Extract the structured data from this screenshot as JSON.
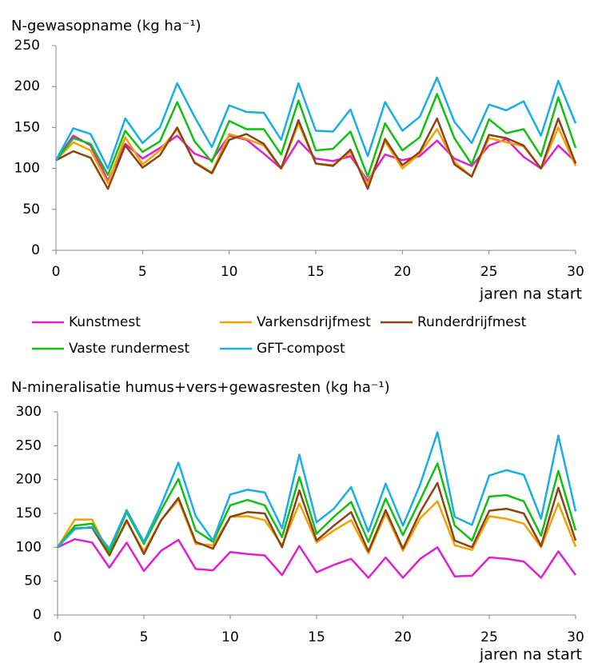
{
  "chart_data": [
    {
      "type": "line",
      "title": "N-gewasopname (kg ha⁻¹)",
      "x_label": "jaren na start",
      "x": [
        0,
        1,
        2,
        3,
        4,
        5,
        6,
        7,
        8,
        9,
        10,
        11,
        12,
        13,
        14,
        15,
        16,
        17,
        18,
        19,
        20,
        21,
        22,
        23,
        24,
        25,
        26,
        27,
        28,
        29,
        30
      ],
      "xlim": [
        0,
        30
      ],
      "xticks": [
        0,
        5,
        10,
        15,
        20,
        25,
        30
      ],
      "ylim": [
        0,
        250
      ],
      "yticks": [
        0,
        50,
        100,
        150,
        200,
        250
      ],
      "legend": "bottom",
      "series": [
        {
          "name": "Kunstmest",
          "color": "#e020d0",
          "values": [
            110,
            140,
            128,
            85,
            130,
            112,
            125,
            140,
            118,
            110,
            140,
            135,
            118,
            100,
            134,
            112,
            109,
            115,
            85,
            117,
            110,
            115,
            134,
            112,
            103,
            128,
            136,
            114,
            100,
            128,
            108
          ]
        },
        {
          "name": "Varkensdrijfmest",
          "color": "#f5a000",
          "values": [
            110,
            132,
            122,
            82,
            138,
            105,
            122,
            148,
            108,
            95,
            142,
            136,
            128,
            100,
            155,
            106,
            104,
            120,
            80,
            133,
            100,
            118,
            148,
            108,
            90,
            137,
            132,
            127,
            100,
            150,
            103
          ]
        },
        {
          "name": "Runderdrijfmest",
          "color": "#8b4513",
          "values": [
            110,
            121,
            113,
            75,
            128,
            101,
            116,
            150,
            107,
            94,
            135,
            142,
            130,
            100,
            159,
            106,
            103,
            123,
            75,
            136,
            104,
            120,
            161,
            105,
            90,
            141,
            137,
            128,
            100,
            161,
            106
          ]
        },
        {
          "name": "Vaste rundermest",
          "color": "#11c011",
          "values": [
            110,
            137,
            130,
            92,
            146,
            120,
            133,
            181,
            133,
            108,
            158,
            148,
            148,
            117,
            183,
            122,
            124,
            145,
            90,
            155,
            122,
            138,
            191,
            137,
            105,
            160,
            143,
            148,
            115,
            187,
            125
          ]
        },
        {
          "name": "GFT-compost",
          "color": "#19aee8",
          "values": [
            110,
            149,
            142,
            100,
            161,
            131,
            150,
            204,
            163,
            126,
            177,
            169,
            168,
            135,
            204,
            146,
            145,
            172,
            115,
            181,
            146,
            163,
            211,
            157,
            131,
            178,
            171,
            182,
            140,
            207,
            155
          ]
        }
      ]
    },
    {
      "type": "line",
      "title": "N-mineralisatie humus+vers+gewasresten (kg ha⁻¹)",
      "x_label": "jaren na start",
      "x": [
        0,
        1,
        2,
        3,
        4,
        5,
        6,
        7,
        8,
        9,
        10,
        11,
        12,
        13,
        14,
        15,
        16,
        17,
        18,
        19,
        20,
        21,
        22,
        23,
        24,
        25,
        26,
        27,
        28,
        29,
        30
      ],
      "xlim": [
        0,
        30
      ],
      "xticks": [
        0,
        5,
        10,
        15,
        20,
        25,
        30
      ],
      "ylim": [
        0,
        300
      ],
      "yticks": [
        0,
        50,
        100,
        150,
        200,
        250,
        300
      ],
      "series": [
        {
          "color": "#e020d0",
          "values": [
            100,
            112,
            107,
            70,
            107,
            65,
            95,
            111,
            68,
            66,
            93,
            90,
            88,
            59,
            102,
            63,
            74,
            83,
            55,
            85,
            55,
            83,
            100,
            57,
            58,
            85,
            83,
            79,
            55,
            94,
            59
          ]
        },
        {
          "color": "#f5a000",
          "values": [
            100,
            141,
            141,
            90,
            138,
            94,
            140,
            170,
            105,
            103,
            145,
            146,
            140,
            103,
            165,
            107,
            125,
            140,
            91,
            150,
            95,
            143,
            168,
            103,
            96,
            146,
            142,
            135,
            100,
            165,
            101
          ]
        },
        {
          "color": "#8b4513",
          "values": [
            100,
            128,
            129,
            88,
            140,
            90,
            140,
            173,
            108,
            98,
            145,
            152,
            150,
            100,
            184,
            110,
            132,
            152,
            94,
            155,
            98,
            152,
            195,
            110,
            100,
            154,
            157,
            150,
            102,
            188,
            110
          ]
        },
        {
          "color": "#11c011",
          "values": [
            100,
            132,
            135,
            93,
            152,
            105,
            155,
            201,
            125,
            108,
            162,
            170,
            162,
            115,
            204,
            120,
            145,
            167,
            108,
            172,
            118,
            170,
            224,
            132,
            110,
            175,
            177,
            168,
            117,
            213,
            125
          ]
        },
        {
          "color": "#19aee8",
          "values": [
            100,
            127,
            130,
            98,
            155,
            108,
            163,
            225,
            146,
            110,
            178,
            185,
            181,
            128,
            237,
            137,
            157,
            189,
            123,
            194,
            132,
            193,
            270,
            145,
            133,
            206,
            214,
            207,
            142,
            265,
            153
          ]
        }
      ]
    }
  ]
}
